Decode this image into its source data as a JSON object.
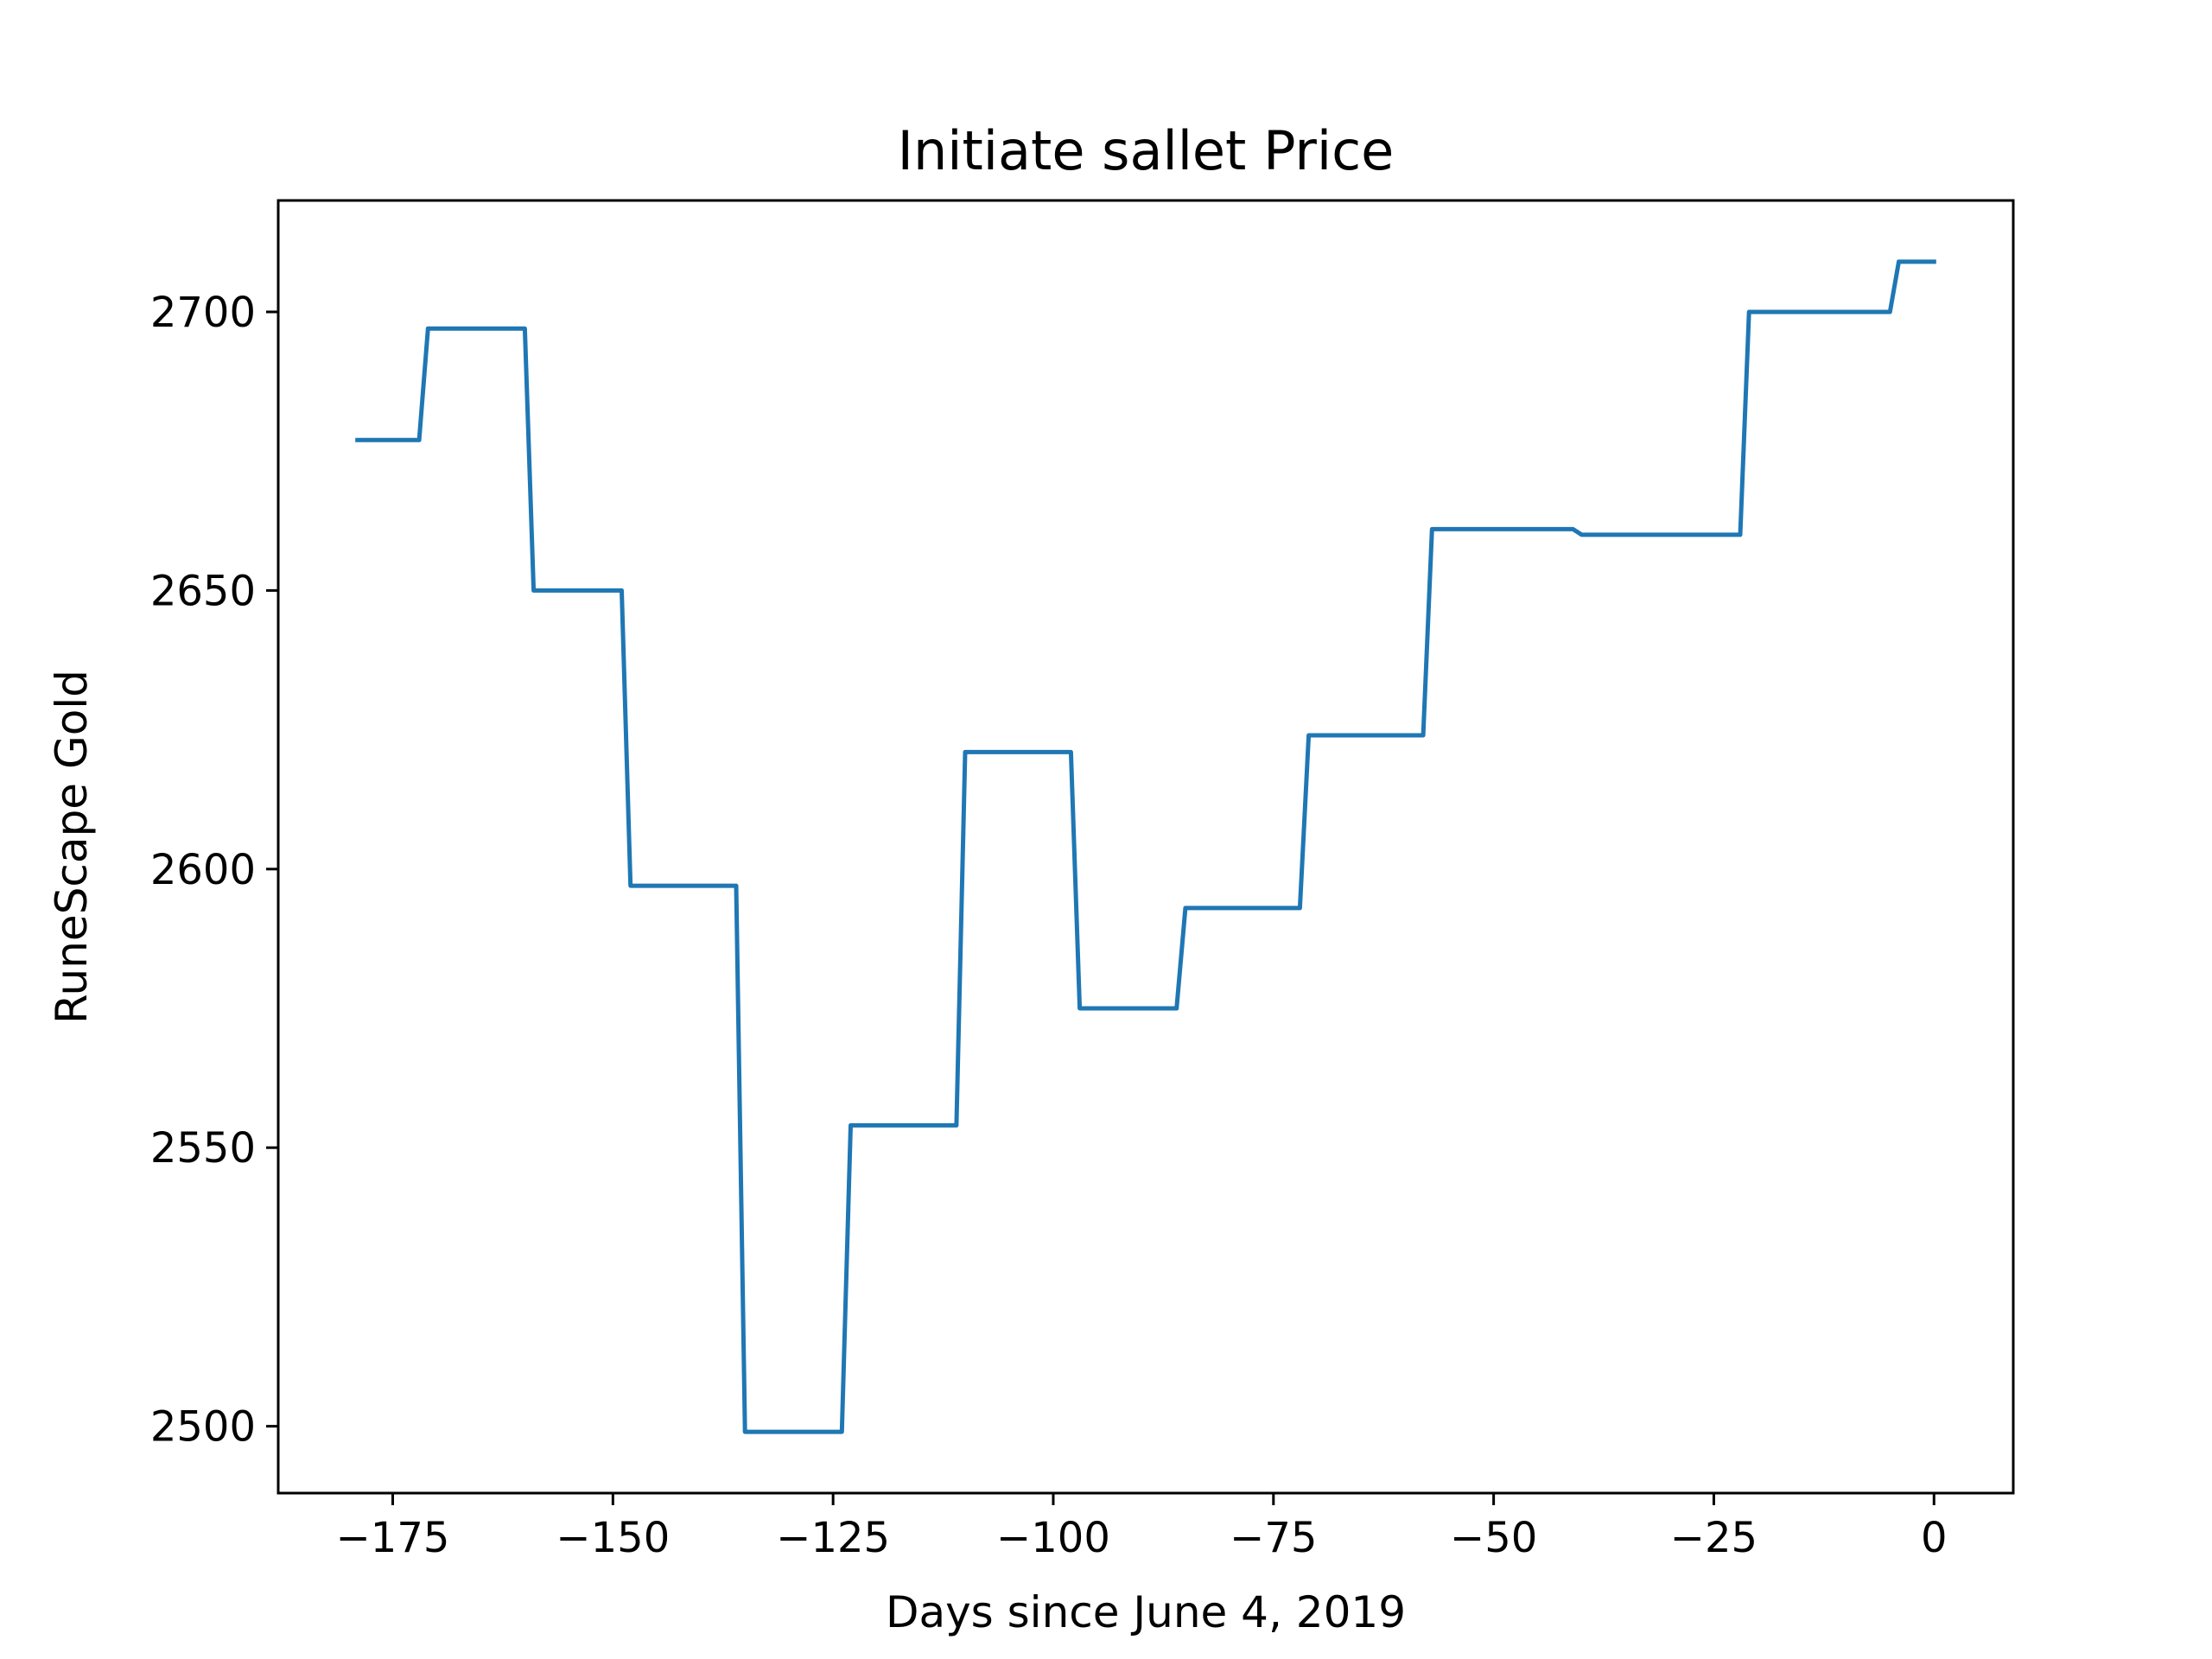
{
  "chart_data": {
    "type": "line",
    "title": "Initiate sallet Price",
    "xlabel": "Days since June 4, 2019",
    "ylabel": "RuneScape Gold",
    "xlim": [
      -188,
      9
    ],
    "ylim": [
      2488,
      2720
    ],
    "xticks": [
      -175,
      -150,
      -125,
      -100,
      -75,
      -50,
      -25,
      0
    ],
    "xtick_labels": [
      "−175",
      "−150",
      "−125",
      "−100",
      "−75",
      "−50",
      "−25",
      "0"
    ],
    "yticks": [
      2500,
      2550,
      2600,
      2650,
      2700
    ],
    "ytick_labels": [
      "2500",
      "2550",
      "2600",
      "2650",
      "2700"
    ],
    "grid": false,
    "series": [
      {
        "color": "#1f77b4",
        "x": [
          -179,
          -172,
          -171,
          -160,
          -159,
          -149,
          -148,
          -136,
          -135,
          -124,
          -123,
          -111,
          -110,
          -98,
          -97,
          -86,
          -85,
          -72,
          -71,
          -58,
          -57,
          -41,
          -40,
          -22,
          -21,
          -5,
          -4,
          0
        ],
        "y": [
          2677,
          2677,
          2697,
          2697,
          2650,
          2650,
          2597,
          2597,
          2499,
          2499,
          2554,
          2554,
          2621,
          2621,
          2575,
          2575,
          2593,
          2593,
          2624,
          2624,
          2661,
          2661,
          2660,
          2660,
          2700,
          2700,
          2709,
          2709
        ]
      }
    ]
  }
}
